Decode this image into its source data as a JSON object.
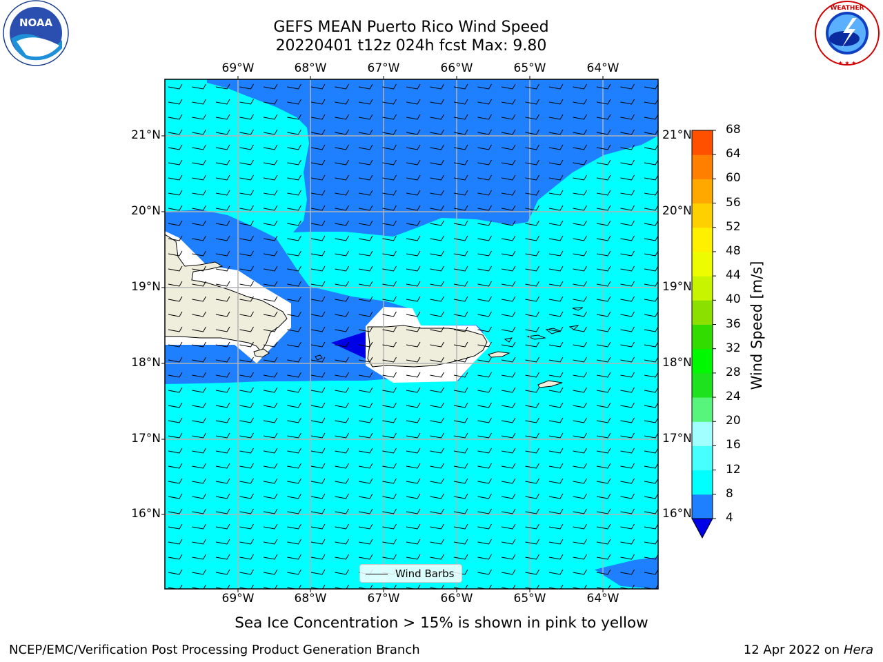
{
  "title": {
    "line1": "GEFS MEAN Puerto Rico Wind Speed",
    "line2": "20220401 t12z 024h fcst   Max: 9.80"
  },
  "logos": {
    "left": {
      "icon": "noaa-logo",
      "text": "NOAA",
      "ring_text": "NATIONAL OCEANIC AND ATMOSPHERIC ADMINISTRATION · U.S. DEPARTMENT OF COMMERCE"
    },
    "right": {
      "icon": "nws-logo",
      "ring_text": "NATIONAL WEATHER SERVICE"
    }
  },
  "map": {
    "lon_labels": [
      "69°W",
      "68°W",
      "67°W",
      "66°W",
      "65°W",
      "64°W"
    ],
    "lat_labels": [
      "21°N",
      "20°N",
      "19°N",
      "18°N",
      "17°N",
      "16°N"
    ],
    "legend_label": "Wind Barbs",
    "colors": {
      "speed_4_8": "#1E7FFF",
      "speed_8_12": "#00FFFF",
      "below_4": "#0000E6",
      "land": "#EFEEDD",
      "grid": "#B4B4B4"
    }
  },
  "colorbar": {
    "title": "Wind Speed [m/s]",
    "ticks": [
      "4",
      "8",
      "12",
      "16",
      "20",
      "24",
      "28",
      "32",
      "36",
      "40",
      "44",
      "48",
      "52",
      "56",
      "60",
      "64",
      "68"
    ],
    "colors": [
      "#1E7FFF",
      "#00FFFF",
      "#48FFFF",
      "#A2FFFF",
      "#58F57C",
      "#1EE21E",
      "#00F800",
      "#32DC00",
      "#8BE000",
      "#C8F400",
      "#EEFC00",
      "#FFF000",
      "#FFD000",
      "#FFA800",
      "#FF7F00",
      "#FF5000",
      "#FF2A00",
      "#FF0000"
    ],
    "under_color": "#0000E6"
  },
  "note": "Sea Ice Concentration > 15% is shown in pink to yellow",
  "footer": {
    "left": "NCEP/EMC/Verification Post Processing Product Generation Branch",
    "right_prefix": "12 Apr 2022 on ",
    "right_host": "Hera"
  }
}
